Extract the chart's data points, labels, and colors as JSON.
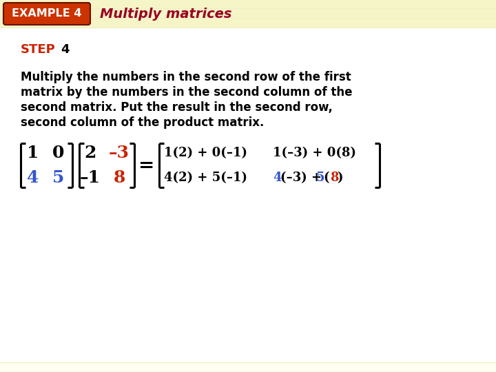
{
  "bg_color": "#fffef0",
  "stripe_color": "#f0f0c8",
  "header_bg": "#f5f5c8",
  "example_box_color_top": "#cc3300",
  "example_box_color_bottom": "#882200",
  "example_box_text": "EXAMPLE 4",
  "example_box_text_color": "#ffffff",
  "header_title": "Multiply matrices",
  "header_title_color": "#990022",
  "step_label": "STEP",
  "step_number": "4",
  "step_color": "#cc2200",
  "step_number_color": "#000000",
  "body_text_line1": "Multiply the numbers in the second row of the first",
  "body_text_line2": "matrix by the numbers in the second column of the",
  "body_text_line3": "second matrix. Put the result in the second row,",
  "body_text_line4": "second column of the product matrix.",
  "body_text_color": "#000000",
  "highlight_blue": "#3355cc",
  "highlight_red": "#cc2200",
  "normal_color": "#000000",
  "matrix1_r1": [
    "1",
    "0"
  ],
  "matrix1_r2": [
    "4",
    "5"
  ],
  "matrix2_r1": [
    "2",
    "–3"
  ],
  "matrix2_r2": [
    "–1",
    "8"
  ],
  "result_r1_c1": "1(2) + 0(–1)",
  "result_r1_c2": "1(–3) + 0(8)",
  "result_r2_c1": "4(2) + 5(–1)",
  "result_r2_c2_parts": [
    {
      "text": "4",
      "color": "#3355cc"
    },
    {
      "text": "(–3) + ",
      "color": "#000000"
    },
    {
      "text": "5",
      "color": "#3355cc"
    },
    {
      "text": "(",
      "color": "#000000"
    },
    {
      "text": "8",
      "color": "#cc2200"
    },
    {
      "text": ")",
      "color": "#000000"
    }
  ]
}
